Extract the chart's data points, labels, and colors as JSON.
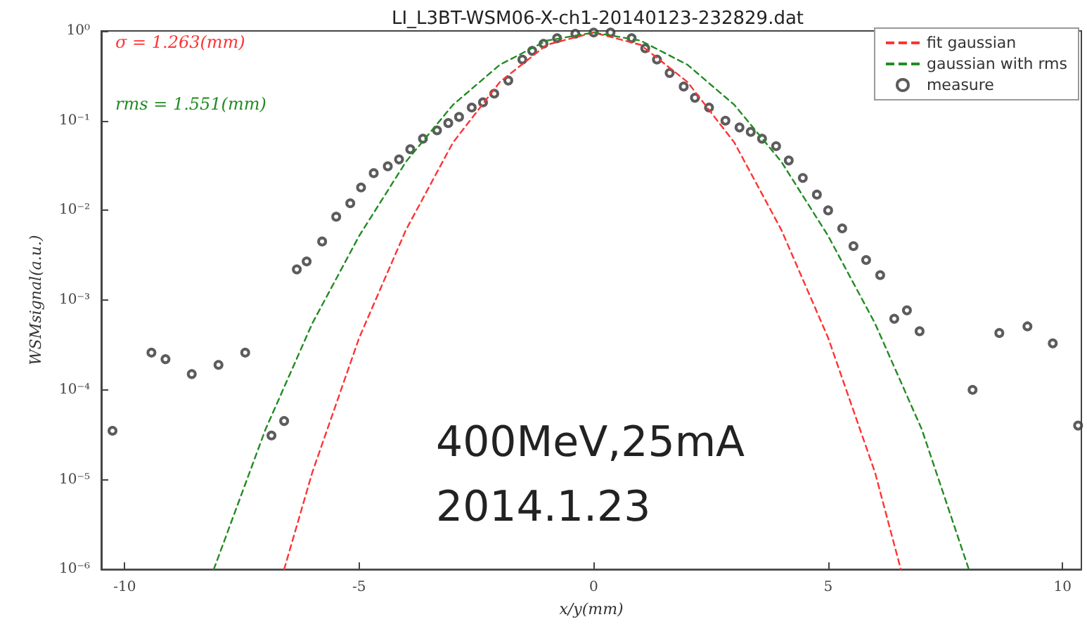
{
  "chart_data": {
    "type": "line",
    "title": "LI_L3BT-WSM06-X-ch1-20140123-232829.dat",
    "xlabel": "x/y(mm)",
    "ylabel": "WSMsignal(a.u.)",
    "log": "y",
    "grid": false,
    "legend": "top right",
    "xlim": [
      -10.5,
      10.4
    ],
    "xticks": [
      -10,
      -5,
      0,
      5,
      10
    ],
    "ylim": [
      1e-06,
      1
    ],
    "yticks": [
      {
        "value": 1e-06,
        "label": "10⁻⁶"
      },
      {
        "value": 1e-05,
        "label": "10⁻⁵"
      },
      {
        "value": 0.0001,
        "label": "10⁻⁴"
      },
      {
        "value": 0.001,
        "label": "10⁻³"
      },
      {
        "value": 0.01,
        "label": "10⁻²"
      },
      {
        "value": 0.1,
        "label": "10⁻¹"
      },
      {
        "value": 1,
        "label": "10⁰"
      }
    ],
    "series": [
      {
        "name": "fit gaussian",
        "line_style": "dashed",
        "color": "#ff3333",
        "x": [
          -6.6,
          -6,
          -5,
          -4,
          -3,
          -2,
          -1,
          0,
          1,
          2,
          3,
          4,
          5,
          6,
          6.55
        ],
        "values": [
          1e-06,
          1.2e-05,
          0.00038,
          0.0061,
          0.057,
          0.27,
          0.7,
          0.96,
          0.7,
          0.27,
          0.057,
          0.0061,
          0.00038,
          1.2e-05,
          1e-06
        ]
      },
      {
        "name": "gaussian with rms",
        "line_style": "dashed",
        "color": "#228b22",
        "x": [
          -8.1,
          -7,
          -6,
          -5,
          -4,
          -3,
          -2,
          -1,
          0,
          1,
          2,
          3,
          4,
          5,
          6,
          7,
          8
        ],
        "values": [
          1e-06,
          3.6e-05,
          0.00055,
          0.0052,
          0.035,
          0.15,
          0.42,
          0.78,
          0.96,
          0.78,
          0.42,
          0.15,
          0.035,
          0.0052,
          0.00055,
          3.6e-05,
          1e-06
        ]
      },
      {
        "name": "measure",
        "type": "scatter",
        "marker": "circle",
        "color": "#333333",
        "x": [
          -10.26,
          -9.43,
          -9.13,
          -8.57,
          -8.0,
          -7.43,
          -6.87,
          -6.6,
          -6.33,
          -6.12,
          -5.79,
          -5.49,
          -5.19,
          -4.96,
          -4.69,
          -4.39,
          -4.15,
          -3.91,
          -3.64,
          -3.34,
          -3.1,
          -2.87,
          -2.6,
          -2.36,
          -2.12,
          -1.82,
          -1.52,
          -1.31,
          -1.07,
          -0.78,
          -0.39,
          0,
          0.36,
          0.81,
          1.1,
          1.35,
          1.62,
          1.92,
          2.16,
          2.46,
          2.81,
          3.11,
          3.35,
          3.59,
          3.89,
          4.16,
          4.46,
          4.76,
          5.0,
          5.3,
          5.54,
          5.81,
          6.11,
          6.41,
          6.68,
          6.95,
          8.08,
          8.65,
          9.25,
          9.79,
          10.33
        ],
        "values": [
          3.5e-05,
          0.00026,
          0.00022,
          0.00015,
          0.00019,
          0.00026,
          3.1e-05,
          4.5e-05,
          0.0022,
          0.0027,
          0.0045,
          0.0085,
          0.012,
          0.018,
          0.026,
          0.031,
          0.037,
          0.048,
          0.063,
          0.078,
          0.094,
          0.11,
          0.14,
          0.16,
          0.2,
          0.28,
          0.48,
          0.6,
          0.72,
          0.83,
          0.93,
          0.96,
          0.96,
          0.83,
          0.64,
          0.48,
          0.34,
          0.24,
          0.18,
          0.14,
          0.1,
          0.084,
          0.075,
          0.063,
          0.052,
          0.036,
          0.023,
          0.015,
          0.01,
          0.0063,
          0.004,
          0.0028,
          0.0019,
          0.00062,
          0.00077,
          0.00045,
          0.0001,
          0.00043,
          0.00051,
          0.00033,
          4e-05
        ]
      }
    ],
    "annotations": [
      "σ = 1.263(mm)",
      "rms = 1.551(mm)",
      "400MeV,25mA",
      "2014.1.23"
    ]
  }
}
